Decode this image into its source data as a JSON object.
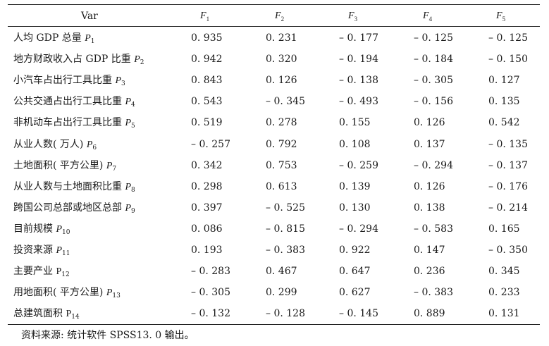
{
  "header": {
    "var_label": "Var",
    "factors": [
      {
        "letter": "F",
        "sub": "1"
      },
      {
        "letter": "F",
        "sub": "2"
      },
      {
        "letter": "F",
        "sub": "3"
      },
      {
        "letter": "F",
        "sub": "4"
      },
      {
        "letter": "F",
        "sub": "5"
      }
    ]
  },
  "rows": [
    {
      "label": "人均 GDP 总量 ",
      "p": "P",
      "sub": "1",
      "italic": true,
      "values": [
        "0. 935",
        "0. 231",
        "– 0. 177",
        "– 0. 125",
        "– 0. 125"
      ]
    },
    {
      "label": "地方财政收入占 GDP 比重 ",
      "p": "P",
      "sub": "2",
      "italic": true,
      "values": [
        "0. 942",
        "0. 320",
        "– 0. 194",
        "– 0. 184",
        "– 0. 150"
      ]
    },
    {
      "label": "小汽车占出行工具比重 ",
      "p": "P",
      "sub": "3",
      "italic": true,
      "values": [
        "0. 843",
        "0. 126",
        "– 0. 138",
        "– 0. 305",
        "0. 127"
      ]
    },
    {
      "label": "公共交通占出行工具比重 ",
      "p": "P",
      "sub": "4",
      "italic": true,
      "values": [
        "0. 543",
        "– 0. 345",
        "– 0. 493",
        "– 0. 156",
        "0. 135"
      ]
    },
    {
      "label": "非机动车占出行工具比重 ",
      "p": "P",
      "sub": "5",
      "italic": true,
      "values": [
        "0. 519",
        "0. 278",
        "0. 155",
        "0. 126",
        "0. 542"
      ]
    },
    {
      "label": "从业人数( 万人) ",
      "p": "P",
      "sub": "6",
      "italic": true,
      "values": [
        "– 0. 257",
        "0. 792",
        "0. 108",
        "0. 137",
        "– 0. 135"
      ]
    },
    {
      "label": "土地面积( 平方公里) ",
      "p": "P",
      "sub": "7",
      "italic": true,
      "values": [
        "0. 342",
        "0. 753",
        "– 0. 259",
        "– 0. 294",
        "– 0. 137"
      ]
    },
    {
      "label": "从业人数与土地面积比重 ",
      "p": "P",
      "sub": "8",
      "italic": true,
      "values": [
        "0. 298",
        "0. 613",
        "0. 139",
        "0. 126",
        "– 0. 176"
      ]
    },
    {
      "label": "跨国公司总部或地区总部 ",
      "p": "P",
      "sub": "9",
      "italic": true,
      "values": [
        "0. 397",
        "– 0. 525",
        "0. 130",
        "0. 138",
        "– 0. 214"
      ]
    },
    {
      "label": "目前规模 ",
      "p": "P",
      "sub": "10",
      "italic": true,
      "values": [
        "0. 086",
        "– 0. 815",
        "– 0. 294",
        "– 0. 583",
        "0. 165"
      ]
    },
    {
      "label": "投资来源 ",
      "p": "P",
      "sub": "11",
      "italic": true,
      "values": [
        "0. 193",
        "– 0. 383",
        "0. 922",
        "0. 147",
        "– 0. 350"
      ]
    },
    {
      "label": "主要产业 ",
      "p": "P",
      "sub": "12",
      "italic": false,
      "values": [
        "– 0. 283",
        "0. 467",
        "0. 647",
        "0. 236",
        "0. 345"
      ]
    },
    {
      "label": "用地面积( 平方公里)  ",
      "p": "P",
      "sub": "13",
      "italic": true,
      "values": [
        "– 0. 305",
        "0. 299",
        "0. 627",
        "– 0. 383",
        "0. 233"
      ]
    },
    {
      "label": "总建筑面积 ",
      "p": "P",
      "sub": "14",
      "italic": false,
      "values": [
        "– 0. 132",
        "– 0. 128",
        "– 0. 145",
        "0. 889",
        "0. 131"
      ]
    }
  ],
  "note": "资料来源: 统计软件 SPSS13. 0 输出。"
}
